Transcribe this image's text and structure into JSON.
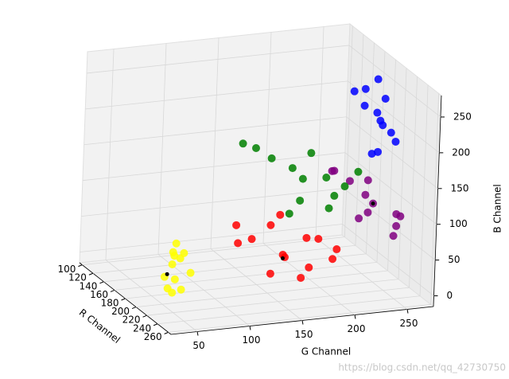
{
  "chart_data": {
    "type": "scatter3d",
    "xlabel": "R Channel",
    "ylabel": "G Channel",
    "zlabel": "B Channel",
    "xlim": [
      95,
      265
    ],
    "ylim": [
      25,
      275
    ],
    "zlim": [
      -15,
      280
    ],
    "xticks": [
      100,
      120,
      140,
      160,
      180,
      200,
      220,
      240,
      260
    ],
    "yticks": [
      50,
      100,
      150,
      200,
      250
    ],
    "zticks": [
      0,
      50,
      100,
      150,
      200,
      250
    ],
    "grid": true,
    "series": [
      {
        "color": "yellow",
        "x": [
          240,
          228,
          250,
          220,
          235,
          245,
          230,
          255,
          225,
          238,
          248,
          232
        ],
        "y": [
          30,
          45,
          28,
          55,
          40,
          35,
          60,
          32,
          48,
          38,
          42,
          52
        ],
        "z": [
          50,
          70,
          40,
          60,
          80,
          30,
          45,
          55,
          85,
          65,
          35,
          75
        ]
      },
      {
        "color": "red",
        "x": [
          235,
          225,
          245,
          215,
          240,
          230,
          250,
          220,
          238,
          228,
          242,
          232,
          218,
          248
        ],
        "y": [
          145,
          120,
          165,
          110,
          190,
          135,
          155,
          175,
          100,
          200,
          130,
          180,
          150,
          140
        ],
        "z": [
          60,
          80,
          45,
          95,
          50,
          100,
          35,
          70,
          85,
          55,
          40,
          75,
          105,
          65
        ]
      },
      {
        "color": "purple",
        "x": [
          215,
          200,
          230,
          190,
          220,
          210,
          235,
          205,
          225,
          195,
          218,
          228
        ],
        "y": [
          240,
          225,
          255,
          215,
          260,
          235,
          250,
          205,
          230,
          245,
          265,
          220
        ],
        "z": [
          105,
          130,
          80,
          140,
          90,
          115,
          70,
          150,
          100,
          125,
          85,
          95
        ]
      },
      {
        "color": "green",
        "x": [
          200,
          180,
          220,
          170,
          210,
          190,
          230,
          165,
          205,
          195,
          215,
          185,
          225
        ],
        "y": [
          180,
          160,
          200,
          150,
          215,
          175,
          190,
          140,
          230,
          205,
          170,
          195,
          155
        ],
        "z": [
          140,
          160,
          125,
          170,
          130,
          150,
          115,
          175,
          145,
          135,
          120,
          165,
          110
        ]
      },
      {
        "color": "blue",
        "x": [
          180,
          165,
          195,
          155,
          185,
          200,
          170,
          190,
          160,
          175,
          205,
          150
        ],
        "y": [
          265,
          255,
          270,
          250,
          260,
          245,
          272,
          268,
          258,
          262,
          248,
          275
        ],
        "z": [
          190,
          210,
          175,
          225,
          200,
          165,
          220,
          185,
          230,
          205,
          170,
          235
        ]
      },
      {
        "color": "black",
        "x": [
          235,
          235,
          215
        ],
        "y": [
          35,
          145,
          240
        ],
        "z": [
          50,
          55,
          105
        ]
      }
    ],
    "watermark": "https://blog.csdn.net/qq_42730750"
  }
}
